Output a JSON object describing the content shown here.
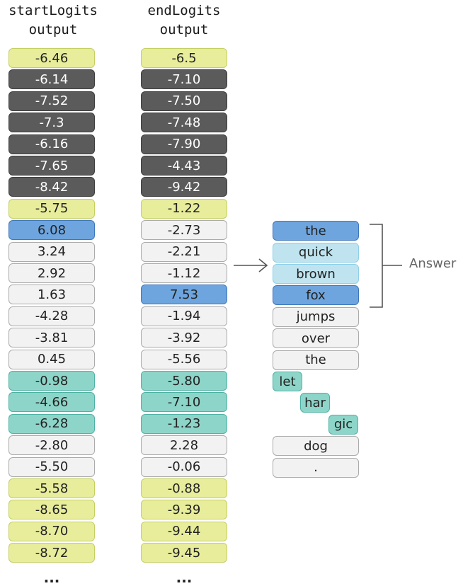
{
  "headers": {
    "start_line1": "startLogits",
    "start_line2": "output",
    "end_line1": "endLogits",
    "end_line2": "output"
  },
  "start_logits": [
    {
      "value": "-6.46",
      "kind": "yellow"
    },
    {
      "value": "-6.14",
      "kind": "dark"
    },
    {
      "value": "-7.52",
      "kind": "dark"
    },
    {
      "value": "-7.3",
      "kind": "dark"
    },
    {
      "value": "-6.16",
      "kind": "dark"
    },
    {
      "value": "-7.65",
      "kind": "dark"
    },
    {
      "value": "-8.42",
      "kind": "dark"
    },
    {
      "value": "-5.75",
      "kind": "yellow"
    },
    {
      "value": "6.08",
      "kind": "blue"
    },
    {
      "value": "3.24",
      "kind": "white"
    },
    {
      "value": "2.92",
      "kind": "white"
    },
    {
      "value": "1.63",
      "kind": "white"
    },
    {
      "value": "-4.28",
      "kind": "white"
    },
    {
      "value": "-3.81",
      "kind": "white"
    },
    {
      "value": "0.45",
      "kind": "white"
    },
    {
      "value": "-0.98",
      "kind": "teal"
    },
    {
      "value": "-4.66",
      "kind": "teal"
    },
    {
      "value": "-6.28",
      "kind": "teal"
    },
    {
      "value": "-2.80",
      "kind": "white"
    },
    {
      "value": "-5.50",
      "kind": "white"
    },
    {
      "value": "-5.58",
      "kind": "yellow"
    },
    {
      "value": "-8.65",
      "kind": "yellow"
    },
    {
      "value": "-8.70",
      "kind": "yellow"
    },
    {
      "value": "-8.72",
      "kind": "yellow"
    }
  ],
  "end_logits": [
    {
      "value": "-6.5",
      "kind": "yellow"
    },
    {
      "value": "-7.10",
      "kind": "dark"
    },
    {
      "value": "-7.50",
      "kind": "dark"
    },
    {
      "value": "-7.48",
      "kind": "dark"
    },
    {
      "value": "-7.90",
      "kind": "dark"
    },
    {
      "value": "-4.43",
      "kind": "dark"
    },
    {
      "value": "-9.42",
      "kind": "dark"
    },
    {
      "value": "-1.22",
      "kind": "yellow"
    },
    {
      "value": "-2.73",
      "kind": "white"
    },
    {
      "value": "-2.21",
      "kind": "white"
    },
    {
      "value": "-1.12",
      "kind": "white"
    },
    {
      "value": "7.53",
      "kind": "blue"
    },
    {
      "value": "-1.94",
      "kind": "white"
    },
    {
      "value": "-3.92",
      "kind": "white"
    },
    {
      "value": "-5.56",
      "kind": "white"
    },
    {
      "value": "-5.80",
      "kind": "teal"
    },
    {
      "value": "-7.10",
      "kind": "teal"
    },
    {
      "value": "-1.23",
      "kind": "teal"
    },
    {
      "value": "2.28",
      "kind": "white"
    },
    {
      "value": "-0.06",
      "kind": "white"
    },
    {
      "value": "-0.88",
      "kind": "yellow"
    },
    {
      "value": "-9.39",
      "kind": "yellow"
    },
    {
      "value": "-9.44",
      "kind": "yellow"
    },
    {
      "value": "-9.45",
      "kind": "yellow"
    }
  ],
  "ellipsis": "...",
  "tokens": [
    {
      "text": "the",
      "kind": "blue"
    },
    {
      "text": "quick",
      "kind": "lblue"
    },
    {
      "text": "brown",
      "kind": "lblue"
    },
    {
      "text": "fox",
      "kind": "blue"
    },
    {
      "text": "jumps",
      "kind": "white"
    },
    {
      "text": "over",
      "kind": "white"
    },
    {
      "text": "the",
      "kind": "white"
    },
    {
      "text": "let",
      "kind": "teal"
    },
    {
      "text": "har",
      "kind": "teal"
    },
    {
      "text": "gic",
      "kind": "teal"
    },
    {
      "text": "dog",
      "kind": "white"
    },
    {
      "text": ".",
      "kind": "white"
    }
  ],
  "answer_label": "Answer",
  "colors": {
    "yellow": "#e8ed9c",
    "dark": "#5b5b5b",
    "blue": "#6ea5de",
    "light_blue": "#bfe4ef",
    "white": "#f2f2f2",
    "teal": "#8ed5c9",
    "connector": "#555555"
  }
}
